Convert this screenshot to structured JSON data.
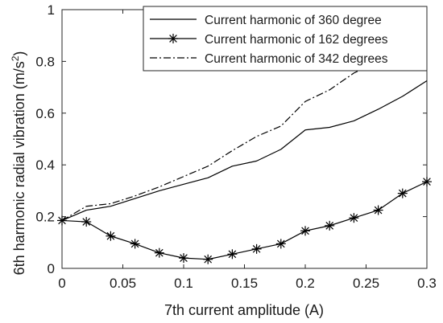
{
  "chart_data": {
    "type": "line",
    "xlabel": "7th current amplitude (A)",
    "ylabel": "6th harmonic radial vibration (m/s",
    "ylabel_sup": "2",
    "ylabel_close": ")",
    "xlim": [
      0,
      0.3
    ],
    "ylim": [
      0,
      1
    ],
    "grid": false,
    "legend_position": "top-right",
    "x_ticks": [
      {
        "value": 0,
        "label": "0"
      },
      {
        "value": 0.05,
        "label": "0.05"
      },
      {
        "value": 0.1,
        "label": "0.1"
      },
      {
        "value": 0.15,
        "label": "0.15"
      },
      {
        "value": 0.2,
        "label": "0.2"
      },
      {
        "value": 0.25,
        "label": "0.25"
      },
      {
        "value": 0.3,
        "label": "0.3"
      }
    ],
    "y_ticks": [
      {
        "value": 0,
        "label": "0"
      },
      {
        "value": 0.2,
        "label": "0.2"
      },
      {
        "value": 0.4,
        "label": "0.4"
      },
      {
        "value": 0.6,
        "label": "0.6"
      },
      {
        "value": 0.8,
        "label": "0.8"
      },
      {
        "value": 1,
        "label": "1"
      }
    ],
    "x": [
      0,
      0.02,
      0.04,
      0.06,
      0.08,
      0.1,
      0.12,
      0.14,
      0.16,
      0.18,
      0.2,
      0.22,
      0.24,
      0.26,
      0.28,
      0.3
    ],
    "series": [
      {
        "name": "Current harmonic of 360 degree",
        "style": "solid",
        "marker": "none",
        "color": "#000000",
        "values": [
          0.185,
          0.225,
          0.24,
          0.27,
          0.3,
          0.325,
          0.35,
          0.395,
          0.415,
          0.46,
          0.535,
          0.545,
          0.57,
          0.615,
          0.665,
          0.725
        ]
      },
      {
        "name": "Current harmonic of 162 degrees",
        "style": "solid",
        "marker": "asterisk",
        "color": "#000000",
        "values": [
          0.185,
          0.18,
          0.125,
          0.095,
          0.06,
          0.04,
          0.035,
          0.055,
          0.075,
          0.095,
          0.145,
          0.165,
          0.195,
          0.225,
          0.29,
          0.335
        ]
      },
      {
        "name": "Current harmonic of 342 degrees",
        "style": "dashdot",
        "marker": "none",
        "color": "#000000",
        "values": [
          0.185,
          0.24,
          0.25,
          0.28,
          0.315,
          0.355,
          0.395,
          0.455,
          0.51,
          0.55,
          0.645,
          0.69,
          0.755,
          0.8,
          0.86,
          0.905
        ]
      }
    ]
  }
}
